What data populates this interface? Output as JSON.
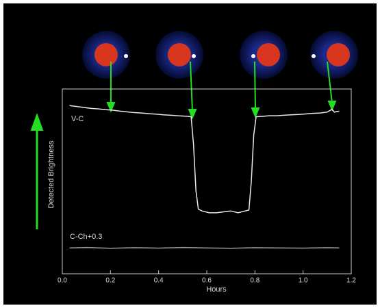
{
  "chart_data": {
    "type": "line",
    "xlabel": "Hours",
    "ylabel": "Detected Brightness",
    "xlim": [
      0,
      1.2
    ],
    "ylim": [
      0,
      1
    ],
    "xticks": [
      {
        "value": 0,
        "label": "0.0"
      },
      0.2,
      0.4,
      0.6,
      0.8,
      {
        "value": 1,
        "label": "1.0"
      },
      1.2
    ],
    "series": [
      {
        "name": "V-C",
        "color": "#e8e8e8",
        "x": [
          0.03,
          0.06,
          0.09,
          0.12,
          0.15,
          0.18,
          0.21,
          0.24,
          0.27,
          0.3,
          0.33,
          0.36,
          0.39,
          0.42,
          0.45,
          0.48,
          0.51,
          0.535,
          0.545,
          0.555,
          0.565,
          0.58,
          0.61,
          0.64,
          0.67,
          0.7,
          0.73,
          0.76,
          0.775,
          0.785,
          0.795,
          0.805,
          0.83,
          0.86,
          0.89,
          0.92,
          0.95,
          0.98,
          1.01,
          1.04,
          1.07,
          1.1,
          1.12,
          1.13,
          1.15
        ],
        "values": [
          0.91,
          0.905,
          0.9,
          0.895,
          0.892,
          0.888,
          0.885,
          0.88,
          0.876,
          0.872,
          0.87,
          0.866,
          0.864,
          0.86,
          0.858,
          0.855,
          0.853,
          0.85,
          0.7,
          0.45,
          0.35,
          0.34,
          0.33,
          0.33,
          0.335,
          0.34,
          0.33,
          0.34,
          0.345,
          0.5,
          0.75,
          0.85,
          0.852,
          0.855,
          0.855,
          0.858,
          0.86,
          0.862,
          0.865,
          0.868,
          0.87,
          0.875,
          0.89,
          0.875,
          0.88
        ]
      },
      {
        "name": "C-Ch+0.3",
        "color": "#9a9a9a",
        "x": [
          0.03,
          0.1,
          0.2,
          0.3,
          0.4,
          0.5,
          0.6,
          0.7,
          0.8,
          0.9,
          1.0,
          1.1,
          1.15
        ],
        "values": [
          0.14,
          0.142,
          0.138,
          0.141,
          0.139,
          0.142,
          0.14,
          0.138,
          0.141,
          0.14,
          0.139,
          0.141,
          0.14
        ]
      }
    ]
  }
}
